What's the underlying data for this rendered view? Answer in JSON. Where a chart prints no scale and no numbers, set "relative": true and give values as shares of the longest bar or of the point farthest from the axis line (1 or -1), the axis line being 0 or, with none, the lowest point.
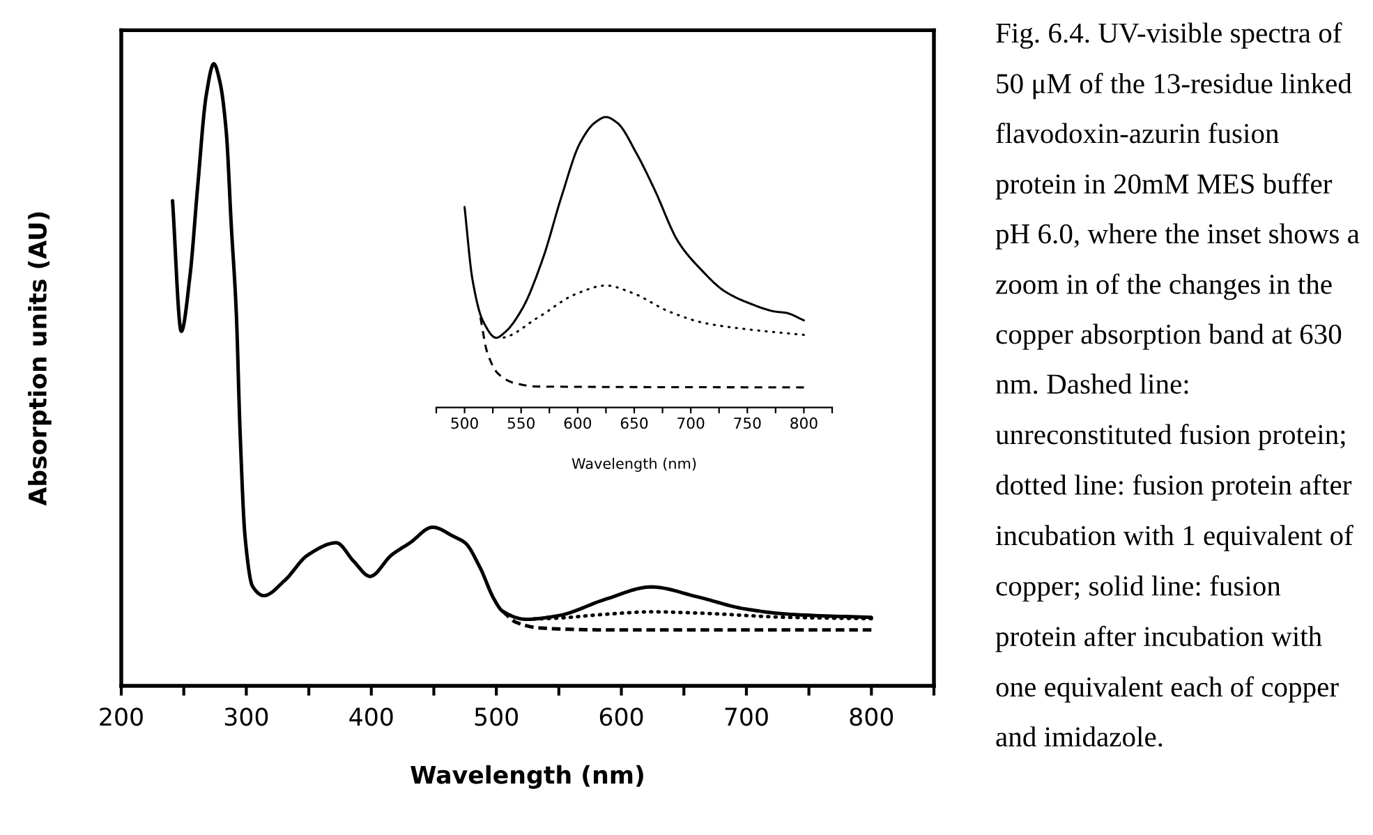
{
  "chart_data": [
    {
      "type": "line",
      "relative": true,
      "xlabel": "Wavelength (nm)",
      "ylabel": "Absorption units (AU)",
      "tick_labels": "x",
      "xlim": [
        200,
        850
      ],
      "xticks": [
        200,
        {
          "value": 250,
          "label": null
        },
        300,
        {
          "value": 350,
          "label": null
        },
        400,
        {
          "value": 450,
          "label": null
        },
        500,
        {
          "value": 550,
          "label": null
        },
        600,
        {
          "value": 650,
          "label": null
        },
        700,
        {
          "value": 750,
          "label": null
        },
        800,
        {
          "value": 850,
          "label": null
        }
      ],
      "series": [
        {
          "color": "#000000",
          "line_style": "solid",
          "x": [
            241,
            248,
            255,
            261,
            268,
            274,
            279,
            284,
            288,
            292,
            295,
            299,
            305,
            314,
            331,
            349,
            372,
            386,
            399,
            416,
            431,
            449,
            466,
            475,
            487,
            498,
            505,
            524,
            550,
            587,
            624,
            661,
            698,
            735,
            800
          ],
          "values": [
            0.78,
            0.57,
            0.66,
            0.8,
            0.95,
            1.0,
            0.97,
            0.89,
            0.74,
            0.6,
            0.41,
            0.24,
            0.16,
            0.145,
            0.17,
            0.21,
            0.23,
            0.2,
            0.176,
            0.21,
            0.23,
            0.255,
            0.24,
            0.23,
            0.19,
            0.14,
            0.12,
            0.107,
            0.113,
            0.139,
            0.159,
            0.143,
            0.124,
            0.115,
            0.11
          ]
        },
        {
          "color": "#000000",
          "line_style": "dotted",
          "x": [
            524,
            550,
            587,
            624,
            661,
            735,
            800
          ],
          "values": [
            0.107,
            0.109,
            0.115,
            0.119,
            0.117,
            0.11,
            0.108
          ]
        },
        {
          "color": "#000000",
          "line_style": "dashed",
          "x": [
            505,
            516,
            535,
            587,
            800
          ],
          "values": [
            0.12,
            0.102,
            0.093,
            0.09,
            0.09
          ]
        }
      ],
      "annotations": [
        "Fig. 6.4. UV-visible spectra of 50 μM of the 13-residue linked flavodoxin-azurin fusion protein in 20mM MES buffer pH 6.0, where the inset shows a zoom in of the changes in the copper absorption band at 630 nm. Dashed line: unreconstituted fusion protein; dotted line: fusion protein after incubation with 1 equivalent of copper; solid line: fusion protein after incubation with one equivalent each of copper and imidazole."
      ]
    },
    {
      "type": "line",
      "relative": true,
      "xlabel": "Wavelength (nm)",
      "tick_labels": "x",
      "xlim": [
        475,
        825
      ],
      "xticks": [
        {
          "value": 475,
          "label": null
        },
        500,
        {
          "value": 525,
          "label": null
        },
        550,
        {
          "value": 575,
          "label": null
        },
        600,
        {
          "value": 625,
          "label": null
        },
        650,
        {
          "value": 675,
          "label": null
        },
        700,
        {
          "value": 725,
          "label": null
        },
        750,
        {
          "value": 775,
          "label": null
        },
        800,
        {
          "value": 825,
          "label": null
        }
      ],
      "series": [
        {
          "color": "#000000",
          "line_style": "solid",
          "x": [
            500,
            507,
            516,
            528,
            536,
            551,
            569,
            586,
            602,
            615,
            625,
            635,
            652,
            668,
            689,
            709,
            730,
            751,
            775,
            784,
            800
          ],
          "values": [
            0.69,
            0.44,
            0.3,
            0.24,
            0.26,
            0.34,
            0.51,
            0.73,
            0.91,
            0.98,
            1.0,
            0.98,
            0.875,
            0.75,
            0.57,
            0.475,
            0.4,
            0.36,
            0.33,
            0.326,
            0.3
          ]
        },
        {
          "color": "#000000",
          "line_style": "dotted",
          "x": [
            528,
            532,
            565,
            598,
            625,
            648,
            681,
            713,
            755,
            800
          ],
          "values": [
            0.24,
            0.24,
            0.31,
            0.39,
            0.42,
            0.395,
            0.33,
            0.29,
            0.267,
            0.25
          ]
        },
        {
          "color": "#000000",
          "line_style": "dashed",
          "x": [
            514,
            520,
            530,
            545,
            565,
            800
          ],
          "values": [
            0.31,
            0.19,
            0.115,
            0.083,
            0.072,
            0.069
          ]
        }
      ]
    }
  ]
}
